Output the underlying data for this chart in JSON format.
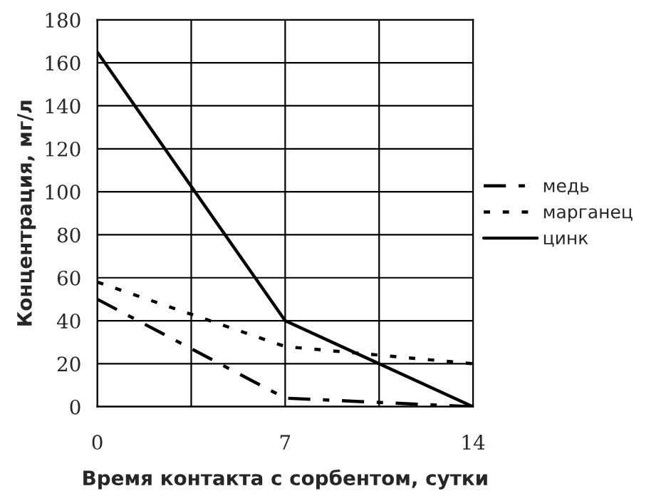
{
  "chart_data": {
    "type": "line",
    "xlabel": "Время контакта с сорбентом, сутки",
    "ylabel": "Концентрация, мг/л",
    "x": [
      0,
      7,
      14
    ],
    "series": [
      {
        "name": "медь",
        "color": "#000000",
        "line_style": "dashdot",
        "values": [
          50,
          4,
          0
        ]
      },
      {
        "name": "марганец",
        "color": "#000000",
        "line_style": "dotted",
        "values": [
          58,
          28,
          20
        ]
      },
      {
        "name": "цинк",
        "color": "#000000",
        "line_style": "solid",
        "values": [
          165,
          40,
          0
        ]
      }
    ],
    "xlim": [
      0,
      14
    ],
    "xticks": [
      0,
      {
        "value": 3.5,
        "label": null
      },
      7,
      {
        "value": 10.5,
        "label": null
      },
      14
    ],
    "ylim": [
      0,
      180
    ],
    "yticks": [
      0,
      20,
      40,
      60,
      80,
      100,
      120,
      140,
      160,
      180
    ],
    "grid": true,
    "legend": "right",
    "marker": "none"
  }
}
